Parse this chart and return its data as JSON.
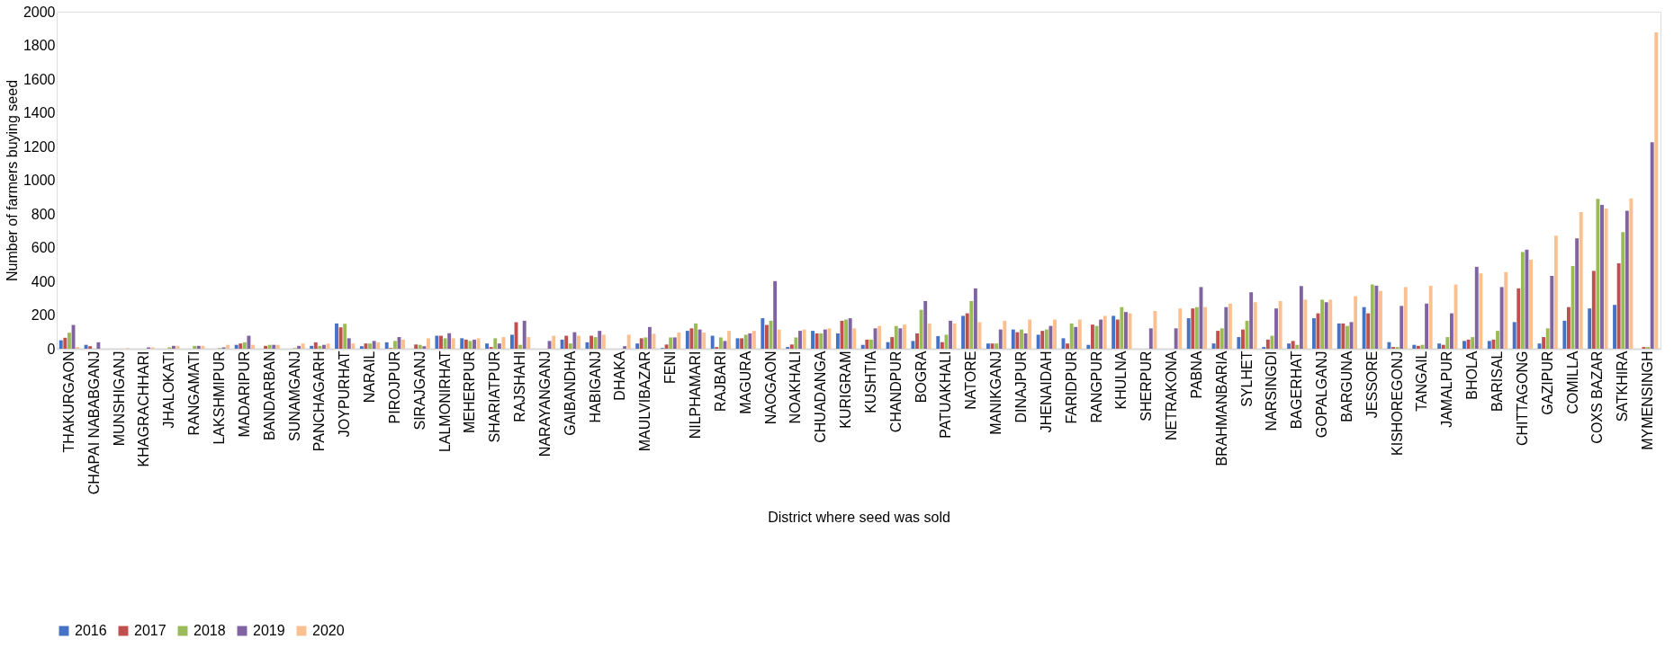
{
  "chart_data": {
    "type": "bar",
    "xlabel": "District where seed was sold",
    "ylabel": "Number of farmers buying seed",
    "categories": [
      "THAKURGAON",
      "CHAPAI NABABGANJ",
      "MUNSHIGANJ",
      "KHAGRACHHARI",
      "JHALOKATI",
      "RANGAMATI",
      "LAKSHMIPUR",
      "MADARIPUR",
      "BANDARBAN",
      "SUNAMGANJ",
      "PANCHAGARH",
      "JOYPURHAT",
      "NARAIL",
      "PIROJPUR",
      "SIRAJGANJ",
      "LALMONIRHAT",
      "MEHERPUR",
      "SHARIATPUR",
      "RAJSHAHI",
      "NARAYANGANJ",
      "GAIBANDHA",
      "HABIGANJ",
      "DHAKA",
      "MAULVIBAZAR",
      "FENI",
      "NILPHAMARI",
      "RAJBARI",
      "MAGURA",
      "NAOGAON",
      "NOAKHALI",
      "CHUADANGA",
      "KURIGRAM",
      "KUSHTIA",
      "CHANDPUR",
      "BOGRA",
      "PATUAKHALI",
      "NATORE",
      "MANIKGANJ",
      "DINAJPUR",
      "JHENAIDAH",
      "FARIDPUR",
      "RANGPUR",
      "KHULNA",
      "SHERPUR",
      "NETRAKONA",
      "PABNA",
      "BRAHMANBARIA",
      "SYLHET",
      "NARSINGDI",
      "BAGERHAT",
      "GOPALGANJ",
      "BARGUNA",
      "JESSORE",
      "KISHOREGONJ",
      "TANGAIL",
      "JAMALPUR",
      "BHOLA",
      "BARISAL",
      "CHITTAGONG",
      "GAZIPUR",
      "COMILLA",
      "COXS BAZAR",
      "SATKHIRA",
      "MYMENSINGH"
    ],
    "series": [
      {
        "name": "2016",
        "color": "#4472c4",
        "values": [
          50,
          23,
          0,
          0,
          0,
          0,
          0,
          23,
          0,
          0,
          17,
          150,
          15,
          38,
          0,
          77,
          62,
          31,
          83,
          0,
          54,
          38,
          0,
          31,
          4,
          106,
          77,
          62,
          181,
          10,
          106,
          91,
          23,
          39,
          46,
          75,
          195,
          31,
          114,
          83,
          62,
          23,
          195,
          0,
          0,
          181,
          31,
          69,
          10,
          31,
          181,
          150,
          247,
          39,
          23,
          31,
          46,
          46,
          158,
          31,
          166,
          239,
          260,
          0
        ]
      },
      {
        "name": "2017",
        "color": "#c0504d",
        "values": [
          65,
          15,
          0,
          0,
          0,
          0,
          0,
          31,
          17,
          0,
          38,
          127,
          31,
          4,
          25,
          77,
          54,
          10,
          158,
          0,
          77,
          77,
          0,
          62,
          25,
          121,
          10,
          62,
          141,
          25,
          91,
          166,
          54,
          69,
          91,
          39,
          210,
          31,
          98,
          106,
          31,
          143,
          173,
          0,
          0,
          239,
          106,
          114,
          54,
          46,
          210,
          150,
          210,
          10,
          17,
          23,
          54,
          54,
          358,
          69,
          247,
          462,
          507,
          10
        ]
      },
      {
        "name": "2018",
        "color": "#9bbb59",
        "values": [
          95,
          0,
          0,
          null,
          8,
          17,
          4,
          38,
          23,
          4,
          17,
          148,
          31,
          46,
          23,
          62,
          46,
          62,
          23,
          0,
          31,
          69,
          0,
          67,
          67,
          150,
          67,
          83,
          166,
          67,
          91,
          173,
          54,
          135,
          231,
          83,
          283,
          31,
          114,
          114,
          150,
          135,
          247,
          null,
          0,
          247,
          121,
          166,
          77,
          23,
          291,
          135,
          381,
          10,
          23,
          69,
          69,
          106,
          574,
          121,
          491,
          890,
          692,
          10
        ]
      },
      {
        "name": "2019",
        "color": "#8064a2",
        "values": [
          141,
          38,
          0,
          8,
          17,
          17,
          8,
          77,
          23,
          17,
          23,
          62,
          46,
          69,
          15,
          92,
          54,
          31,
          166,
          46,
          98,
          106,
          15,
          129,
          67,
          114,
          46,
          91,
          401,
          106,
          114,
          181,
          121,
          121,
          283,
          166,
          358,
          114,
          91,
          135,
          129,
          173,
          218,
          121,
          121,
          366,
          247,
          335,
          239,
          372,
          276,
          158,
          374,
          254,
          268,
          210,
          486,
          366,
          588,
          432,
          655,
          854,
          819,
          1225
        ]
      },
      {
        "name": "2020",
        "color": "#fac090",
        "values": [
          10,
          0,
          4,
          8,
          17,
          17,
          23,
          23,
          23,
          31,
          31,
          31,
          38,
          54,
          62,
          62,
          62,
          69,
          69,
          77,
          77,
          83,
          83,
          89,
          96,
          96,
          106,
          106,
          114,
          114,
          121,
          121,
          135,
          143,
          150,
          150,
          158,
          166,
          173,
          173,
          173,
          195,
          210,
          224,
          239,
          247,
          268,
          276,
          283,
          291,
          291,
          312,
          343,
          366,
          374,
          381,
          447,
          455,
          528,
          671,
          811,
          832,
          892,
          1877
        ]
      }
    ],
    "ylim": [
      0,
      2000
    ],
    "yticks": [
      0,
      200,
      400,
      600,
      800,
      1000,
      1200,
      1400,
      1600,
      1800,
      2000
    ],
    "grid": false,
    "legend": "bottom"
  }
}
